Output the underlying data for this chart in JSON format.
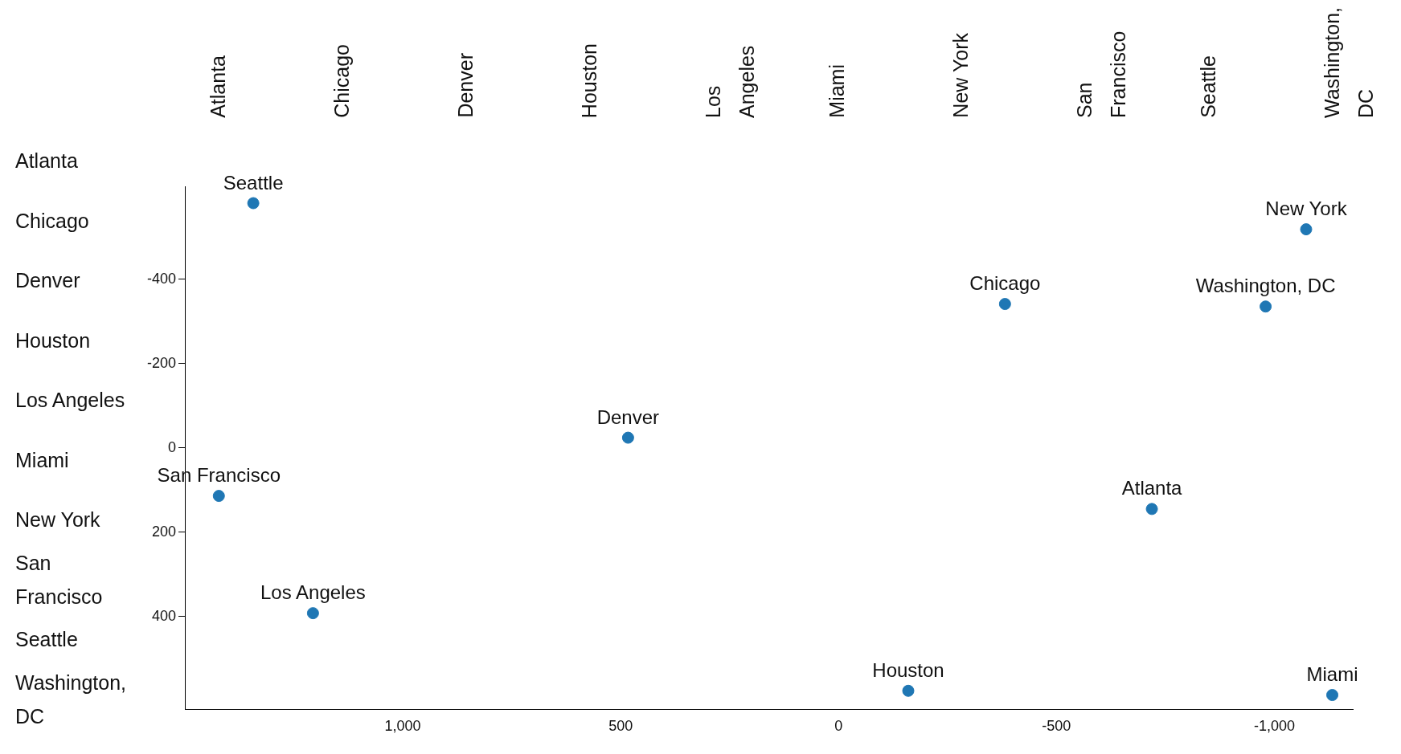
{
  "chart_data": {
    "type": "scatter",
    "xlim": [
      1500,
      -1180
    ],
    "ylim": [
      620,
      -620
    ],
    "xticks": [
      {
        "value": 1000,
        "label": "1,000"
      },
      500,
      0,
      -500,
      {
        "value": -1000,
        "label": "-1,000"
      }
    ],
    "yticks": [
      -400,
      -200,
      0,
      200,
      400
    ],
    "marker": "circle",
    "grid": false,
    "legend": false,
    "series": [
      {
        "color": "#1f77b4",
        "x": [
          -719,
          -382,
          483,
          -160,
          1206,
          -1133,
          -1073,
          1422,
          1343,
          -980
        ],
        "values": [
          145,
          -341,
          -24,
          576,
          392,
          586,
          -518,
          114,
          -580,
          -335
        ]
      }
    ],
    "annotations": [
      {
        "text": "Atlanta",
        "x": -719,
        "y": 145
      },
      {
        "text": "Chicago",
        "x": -382,
        "y": -341
      },
      {
        "text": "Denver",
        "x": 483,
        "y": -24
      },
      {
        "text": "Houston",
        "x": -160,
        "y": 576
      },
      {
        "text": "Los Angeles",
        "x": 1206,
        "y": 392
      },
      {
        "text": "Miami",
        "x": -1133,
        "y": 586
      },
      {
        "text": "New York",
        "x": -1073,
        "y": -518
      },
      {
        "text": "San Francisco",
        "x": 1422,
        "y": 114
      },
      {
        "text": "Seattle",
        "x": 1343,
        "y": -580
      },
      {
        "text": "Washington, DC",
        "x": -980,
        "y": -335
      },
      "Atlanta",
      "Chicago",
      "Denver",
      "Houston",
      "Los Angeles",
      "Miami",
      "New York",
      "San Francisco",
      "Seattle",
      "Washington, DC",
      "Atlanta",
      "Chicago",
      "Denver",
      "Houston",
      "Los Angeles",
      "Miami",
      "New York",
      "San Francisco",
      "Seattle",
      "Washington, DC"
    ]
  }
}
